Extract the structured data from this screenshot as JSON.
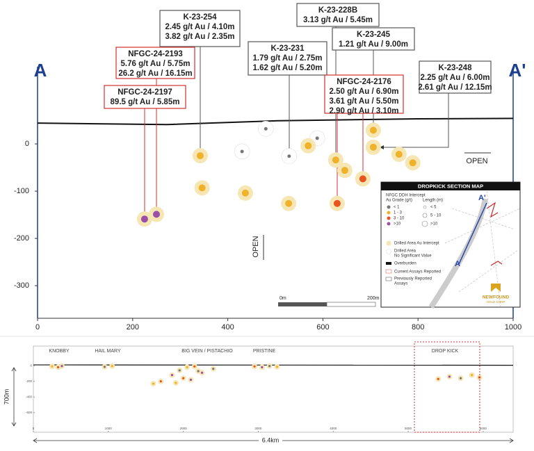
{
  "chart_data": {
    "type": "scatter",
    "xlim": [
      0,
      1000
    ],
    "ylim": [
      -369,
      131
    ],
    "xticks": [
      0,
      200,
      400,
      600,
      800,
      1000
    ],
    "yticks": [
      0,
      -100,
      -200,
      -300
    ],
    "halo_color": "#f5e6b4",
    "series": [
      {
        "name": "< 1",
        "color": "#777777",
        "halo": false,
        "x": [
          430,
          480,
          529,
          588
        ],
        "y": [
          -16,
          32,
          -26,
          12
        ]
      },
      {
        "name": "1 - 3",
        "color": "#f0b22a",
        "halo": true,
        "x": [
          342,
          346,
          437,
          528,
          569,
          627,
          646,
          706,
          706,
          760,
          789
        ],
        "y": [
          -25,
          -93,
          -104,
          -126,
          -4,
          -34,
          -56,
          29,
          -7,
          -22,
          -40
        ]
      },
      {
        "name": "3 - 10",
        "color": "#e8531f",
        "halo": true,
        "x": [
          630,
          684
        ],
        "y": [
          -126,
          -74
        ]
      },
      {
        "name": ">10",
        "color": "#9b4fa6",
        "halo": true,
        "x": [
          225,
          250
        ],
        "y": [
          -159,
          -149
        ]
      }
    ],
    "surface": {
      "x": [
        0,
        272,
        506,
        798,
        1000
      ],
      "y": [
        44,
        41,
        49,
        53,
        54
      ]
    }
  },
  "section_labels": {
    "left": "A",
    "right": "A'"
  },
  "open_labels": [
    "OPEN",
    "OPEN"
  ],
  "scale_bar": [
    "0m",
    "200m"
  ],
  "callouts": [
    {
      "title": "K-23-254",
      "lines": [
        "2.45 g/t Au / 4.10m",
        "3.82 g/t Au / 2.35m"
      ],
      "kind": "previous"
    },
    {
      "title": "K-23-228B",
      "lines": [
        "3.13 g/t Au / 5.45m"
      ],
      "kind": "previous"
    },
    {
      "title": "K-23-231",
      "lines": [
        "1.79 g/t Au / 2.75m",
        "1.62 g/t Au / 5.20m"
      ],
      "kind": "previous"
    },
    {
      "title": "K-23-245",
      "lines": [
        "1.21 g/t Au / 9.00m"
      ],
      "kind": "previous"
    },
    {
      "title": "K-23-248",
      "lines": [
        "2.25 g/t Au / 6.00m",
        "2.61 g/t Au / 12.15m"
      ],
      "kind": "previous"
    },
    {
      "title": "NFGC-24-2193",
      "lines": [
        "5.76 g/t Au / 5.75m",
        "26.2 g/t Au / 16.15m"
      ],
      "kind": "current"
    },
    {
      "title": "NFGC-24-2197",
      "lines": [
        "89.5 g/t Au / 5.85m"
      ],
      "kind": "current"
    },
    {
      "title": "NFGC-24-2176",
      "lines": [
        "2.50 g/t Au / 6.90m",
        "3.61 g/t Au / 5.50m",
        "2.90 g/t Au / 3.10m"
      ],
      "kind": "current"
    }
  ],
  "inset": {
    "title": "DROPKICK SECTION MAP",
    "intercept": "NFGC DDH Intercept",
    "grade": "Au Grade (g/t)",
    "length": "Length (m)",
    "lengths": [
      "< 5",
      "5 - 10",
      ">10"
    ],
    "drilled": "Drilled Area Au Intercept",
    "nosig": [
      "Drilled Area",
      "No Significant Value"
    ],
    "overburden": "Overburden",
    "current": "Current Assays Reported",
    "previous": [
      "Previously Reported",
      "Assays"
    ],
    "map_a2": "A'",
    "map_a": "A",
    "logo": [
      "NEWFOUND",
      "GOLD CORP"
    ]
  },
  "long_section": {
    "areas": [
      "KNOBBY",
      "HAIL MARY",
      "BIG VEIN / PISTACHIO",
      "PRISTINE",
      "DROP KICK"
    ],
    "xlim": [
      0,
      6400
    ],
    "ylim": [
      -850,
      250
    ],
    "xticks": [
      0,
      1000,
      2000,
      3000,
      4000,
      5000,
      6000
    ],
    "yticks": [
      0,
      -200,
      -400,
      -600
    ],
    "holes": {
      "x": [
        250,
        330,
        380,
        950,
        1050,
        1700,
        1850,
        1950,
        2050,
        2150,
        2250,
        2400,
        1900,
        2000,
        2100,
        2200,
        1600,
        2950,
        3050,
        3150,
        3250,
        5400,
        5550,
        5700,
        5850,
        5950
      ],
      "y": [
        -10,
        -20,
        -5,
        -15,
        -5,
        -200,
        -120,
        -60,
        -20,
        -10,
        -90,
        -40,
        -220,
        -160,
        -180,
        -70,
        -230,
        -10,
        -20,
        -5,
        -15,
        -170,
        -140,
        -160,
        -120,
        -150
      ]
    },
    "height": "700m",
    "length": "6.4km"
  }
}
